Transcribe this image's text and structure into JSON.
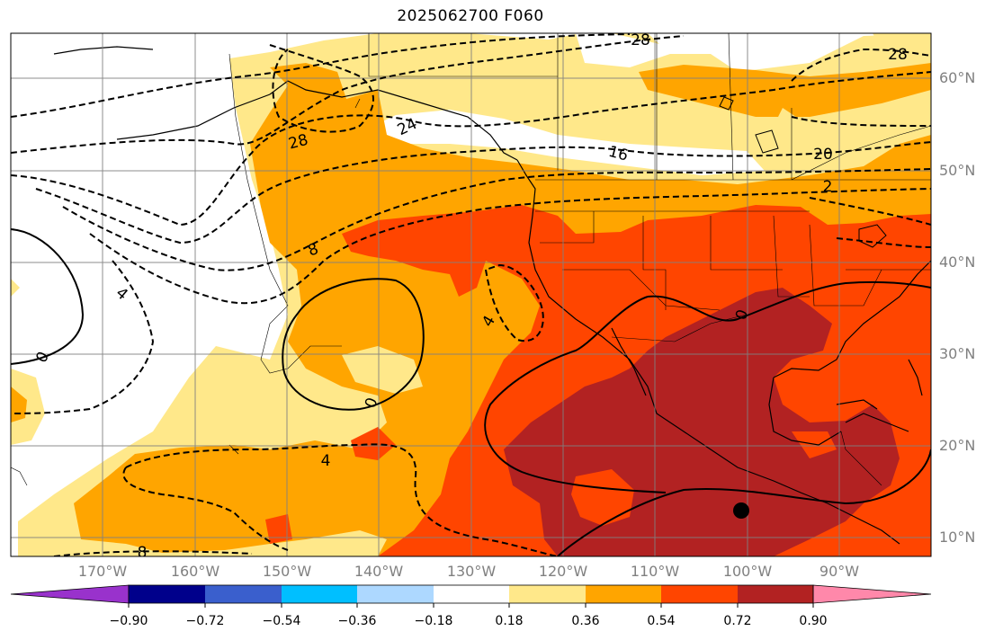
{
  "title": "2025062700 F060",
  "lat_labels": [
    "60°N",
    "50°N",
    "40°N",
    "30°N",
    "20°N",
    "10°N"
  ],
  "lon_labels": [
    "170°W",
    "160°W",
    "150°W",
    "140°W",
    "130°W",
    "120°W",
    "110°W",
    "100°W",
    "90°W"
  ],
  "contour_labels": [
    "28",
    "24",
    "16",
    "20",
    "2",
    "28",
    "8",
    "4",
    "0",
    "0",
    "4",
    "0",
    "4",
    "8",
    "28"
  ],
  "colorbar": {
    "ticks": [
      "−0.90",
      "−0.72",
      "−0.54",
      "−0.36",
      "−0.18",
      "0.18",
      "0.36",
      "0.54",
      "0.72",
      "0.90"
    ],
    "colors": [
      "#9932cc",
      "#00008b",
      "#3a5fcd",
      "#00bfff",
      "#add8ff",
      "#ffffff",
      "#ffe88a",
      "#ffa500",
      "#ff4500",
      "#b22222",
      "#ff88aa"
    ]
  },
  "colors": {
    "land_gray": "#808080",
    "fill_yellow": "#ffe88a",
    "fill_orange": "#ffa500",
    "fill_redorange": "#ff4500",
    "fill_darkred": "#b22222"
  }
}
